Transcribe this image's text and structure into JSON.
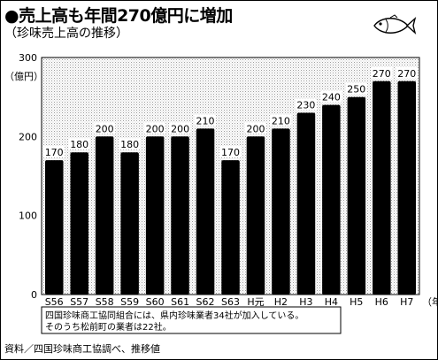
{
  "title": "●売上高も年間270億円に増加",
  "subtitle": "（珍味売上高の推移）",
  "source": "資料／四国珍味商工協調べ、推移値",
  "note_lines": [
    "四国珍味商工協同組合には、県内珍味業者34社が加入している。",
    "そのうち松前町の業者は22社。"
  ],
  "fish_icon": "fish-icon",
  "chart_data": {
    "type": "bar",
    "categories": [
      "S56",
      "S57",
      "S58",
      "S59",
      "S60",
      "S61",
      "S62",
      "S63",
      "H元",
      "H2",
      "H3",
      "H4",
      "H5",
      "H6",
      "H7"
    ],
    "values": [
      170,
      180,
      200,
      180,
      200,
      200,
      210,
      170,
      200,
      210,
      230,
      240,
      250,
      270,
      270
    ],
    "ylim": [
      0,
      300
    ],
    "yticks": [
      0,
      100,
      200,
      300
    ],
    "yunit": "（億円）",
    "xunit": "（年）",
    "grid": false,
    "background_pattern": "dotted",
    "bar_color": "#000000"
  }
}
